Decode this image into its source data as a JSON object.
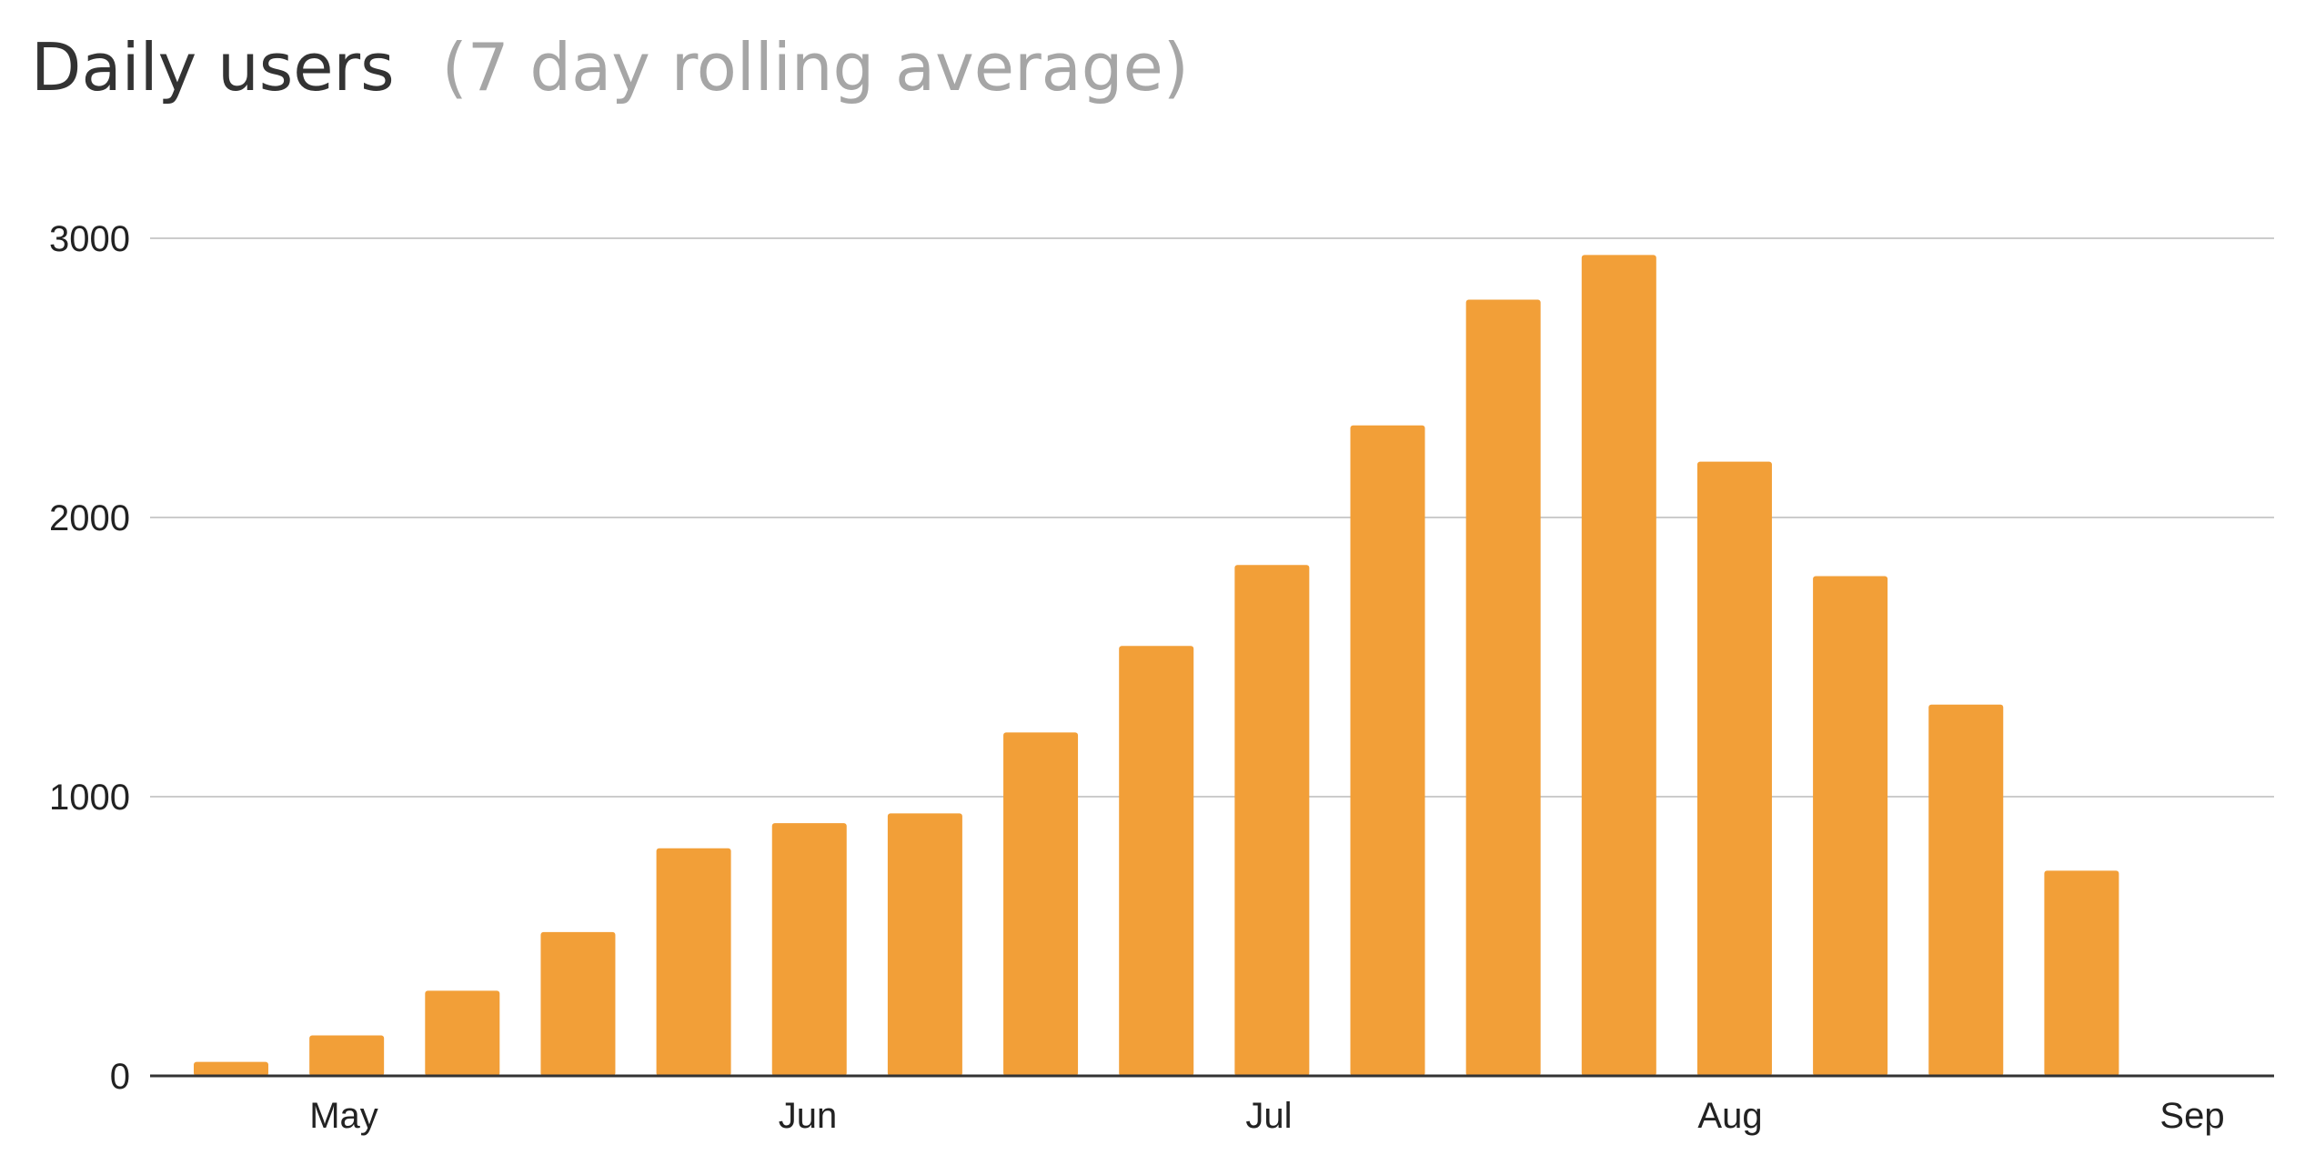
{
  "chart_data": {
    "type": "bar",
    "title": "Daily users",
    "subtitle": "(7 day rolling average)",
    "xlabel": "",
    "ylabel": "",
    "ylim": [
      0,
      3000
    ],
    "yticks": [
      0,
      1000,
      2000,
      3000
    ],
    "grid": true,
    "legend": "none",
    "bar_color": "#f29f38",
    "x_axis_labels": [
      "May",
      "Jun",
      "Jul",
      "Aug",
      "Sep"
    ],
    "series": [
      {
        "values": [
          50,
          145,
          305,
          515,
          815,
          905,
          940,
          1230,
          1540,
          1830,
          2330,
          2780,
          2940,
          2200,
          1790,
          1330,
          735
        ]
      }
    ]
  }
}
